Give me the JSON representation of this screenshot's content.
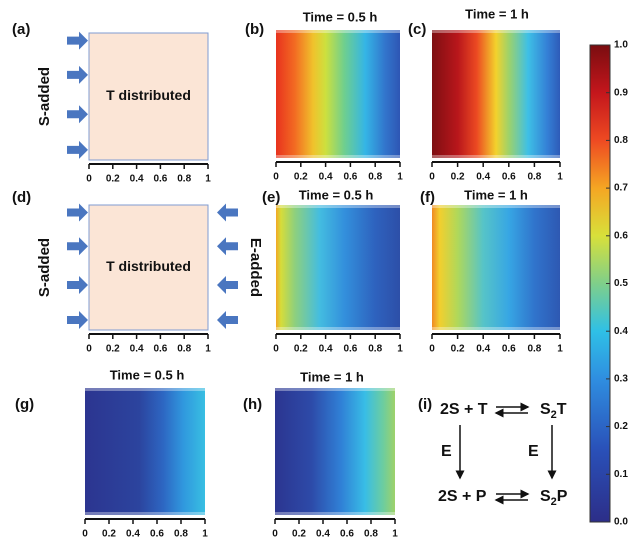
{
  "panels": [
    {
      "label": "(a)",
      "side_label": "S-added",
      "box_text": "T distributed"
    },
    {
      "label": "(b)",
      "title": "Time = 0.5 h"
    },
    {
      "label": "(c)",
      "title": "Time = 1 h"
    },
    {
      "label": "(d)",
      "side_label": "S-added",
      "box_text": "T distributed",
      "right_label": "E-added"
    },
    {
      "label": "(e)",
      "title": "Time = 0.5 h"
    },
    {
      "label": "(f)",
      "title": "Time = 1 h"
    },
    {
      "label": "(g)",
      "title": "Time = 0.5 h"
    },
    {
      "label": "(h)",
      "title": "Time = 1 h"
    }
  ],
  "x_ticks": [
    0,
    0.2,
    0.4,
    0.6,
    0.8,
    1
  ],
  "colorbar": {
    "lim": [
      0,
      1
    ],
    "ticks": [
      {
        "value": 0,
        "label": "0.0"
      },
      {
        "value": 0.1,
        "label": "0.1"
      },
      {
        "value": 0.2,
        "label": "0.2"
      },
      {
        "value": 0.3,
        "label": "0.3"
      },
      {
        "value": 0.4,
        "label": "0.4"
      },
      {
        "value": 0.5,
        "label": "0.5"
      },
      {
        "value": 0.6,
        "label": "0.6"
      },
      {
        "value": 0.7,
        "label": "0.7"
      },
      {
        "value": 0.8,
        "label": "0.8"
      },
      {
        "value": 0.9,
        "label": "0.9"
      },
      {
        "value": 1,
        "label": "1.0"
      }
    ]
  },
  "scheme": {
    "label": "(i)",
    "top_left": "2S + T",
    "top_right": {
      "base": "S",
      "sub": "2",
      "rest": "T"
    },
    "catalyst_left": "E",
    "catalyst_right": "E",
    "bottom_left": "2S + P",
    "bottom_right": {
      "base": "S",
      "sub": "2",
      "rest": "P"
    }
  }
}
